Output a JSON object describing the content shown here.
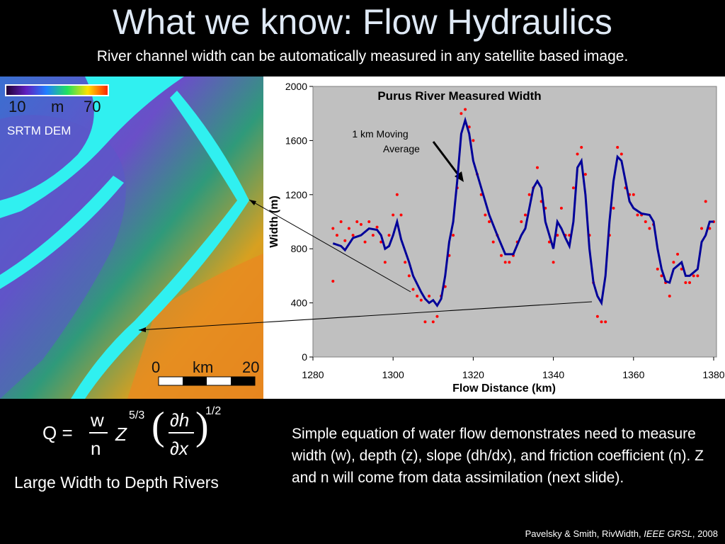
{
  "slide": {
    "title": "What we know: Flow Hydraulics",
    "subtitle": "River channel width can be automatically measured in any satellite based image.",
    "map": {
      "scale_min": "10",
      "scale_unit": "m",
      "scale_max": "70",
      "label": "SRTM DEM",
      "km_zero": "0",
      "km_unit": "km",
      "km_max": "20"
    },
    "equation": {
      "lhs": "Q =",
      "numerator": "w",
      "denominator": "n",
      "depth": "Z",
      "depth_exp": "5/3",
      "slope_num": "∂h",
      "slope_den": "∂x",
      "slope_exp": "1/2"
    },
    "left_caption": "Large Width to Depth Rivers",
    "body": "Simple equation of water flow demonstrates need to measure width (w), depth (z), slope (dh/dx), and friction coefficient (n).  Z and n will come from data assimilation (next slide).",
    "citation": {
      "before": "Pavelsky & Smith, RivWidth, ",
      "journal": "IEEE GRSL",
      "after": ", 2008"
    }
  },
  "chart_data": {
    "type": "line",
    "title": "Purus River Measured Width",
    "x_label": "Flow Distance (km)",
    "y_label": "Width (m)",
    "annotation": [
      "1 km Moving",
      "Average"
    ],
    "xlim": [
      1280,
      1380
    ],
    "xticks": [
      1280,
      1300,
      1320,
      1340,
      1360,
      1380
    ],
    "ylim": [
      0,
      2000
    ],
    "yticks": [
      0,
      400,
      800,
      1200,
      1600,
      2000
    ],
    "series": [
      {
        "type": "scatter",
        "color": "#ff0000",
        "x": [
          1285,
          1285,
          1286,
          1287,
          1288,
          1289,
          1290,
          1291,
          1292,
          1293,
          1294,
          1295,
          1296,
          1297,
          1298,
          1299,
          1300,
          1301,
          1302,
          1303,
          1304,
          1305,
          1306,
          1307,
          1308,
          1309,
          1310,
          1311,
          1312,
          1313,
          1314,
          1315,
          1316,
          1317,
          1318,
          1319,
          1320,
          1321,
          1322,
          1323,
          1324,
          1325,
          1326,
          1327,
          1328,
          1329,
          1330,
          1331,
          1332,
          1333,
          1334,
          1335,
          1336,
          1337,
          1338,
          1339,
          1340,
          1341,
          1342,
          1343,
          1344,
          1345,
          1346,
          1347,
          1348,
          1349,
          1350,
          1351,
          1352,
          1353,
          1354,
          1355,
          1356,
          1357,
          1358,
          1359,
          1360,
          1361,
          1362,
          1363,
          1364,
          1365,
          1366,
          1367,
          1368,
          1369,
          1370,
          1371,
          1372,
          1373,
          1374,
          1375,
          1376,
          1377,
          1378,
          1379,
          1380
        ],
        "values": [
          950,
          560,
          900,
          1000,
          860,
          950,
          900,
          1000,
          980,
          850,
          1000,
          900,
          960,
          850,
          700,
          900,
          1050,
          1200,
          1050,
          700,
          600,
          500,
          450,
          420,
          260,
          450,
          260,
          300,
          450,
          520,
          750,
          900,
          1250,
          1800,
          1830,
          1700,
          1600,
          1350,
          1200,
          1050,
          1000,
          850,
          900,
          750,
          700,
          700,
          750,
          850,
          1000,
          1050,
          1200,
          1250,
          1400,
          1150,
          1100,
          850,
          700,
          900,
          1100,
          900,
          900,
          1250,
          1500,
          1550,
          1350,
          900,
          550,
          300,
          260,
          260,
          900,
          1100,
          1550,
          1500,
          1250,
          1200,
          1200,
          1050,
          1050,
          1000,
          950,
          980,
          650,
          600,
          550,
          450,
          700,
          760,
          650,
          550,
          550,
          600,
          600,
          950,
          1150,
          950,
          1000
        ]
      },
      {
        "type": "line",
        "color": "#000099",
        "x": [
          1285,
          1287,
          1288,
          1290,
          1292,
          1294,
          1296,
          1297,
          1298,
          1299,
          1300,
          1301,
          1302,
          1304,
          1305,
          1307,
          1308,
          1309,
          1310,
          1311,
          1312,
          1313,
          1314,
          1315,
          1316,
          1317,
          1318,
          1319,
          1320,
          1322,
          1324,
          1326,
          1328,
          1330,
          1332,
          1333,
          1335,
          1336,
          1337,
          1338,
          1339,
          1340,
          1341,
          1342,
          1343,
          1344,
          1345,
          1346,
          1347,
          1348,
          1349,
          1350,
          1351,
          1352,
          1353,
          1354,
          1355,
          1356,
          1357,
          1358,
          1359,
          1360,
          1362,
          1364,
          1365,
          1366,
          1367,
          1368,
          1369,
          1370,
          1372,
          1373,
          1374,
          1376,
          1377,
          1378,
          1379,
          1380
        ],
        "values": [
          840,
          820,
          790,
          880,
          900,
          950,
          940,
          900,
          800,
          820,
          900,
          1000,
          870,
          700,
          600,
          480,
          430,
          400,
          420,
          380,
          430,
          600,
          850,
          1000,
          1300,
          1650,
          1750,
          1650,
          1450,
          1250,
          1050,
          900,
          760,
          760,
          900,
          950,
          1250,
          1300,
          1250,
          1000,
          900,
          800,
          1000,
          950,
          880,
          820,
          1000,
          1400,
          1450,
          1200,
          800,
          550,
          450,
          400,
          600,
          1000,
          1300,
          1480,
          1450,
          1300,
          1150,
          1100,
          1060,
          1050,
          1000,
          800,
          650,
          560,
          550,
          650,
          700,
          600,
          600,
          650,
          850,
          900,
          1000,
          1000
        ]
      }
    ]
  }
}
